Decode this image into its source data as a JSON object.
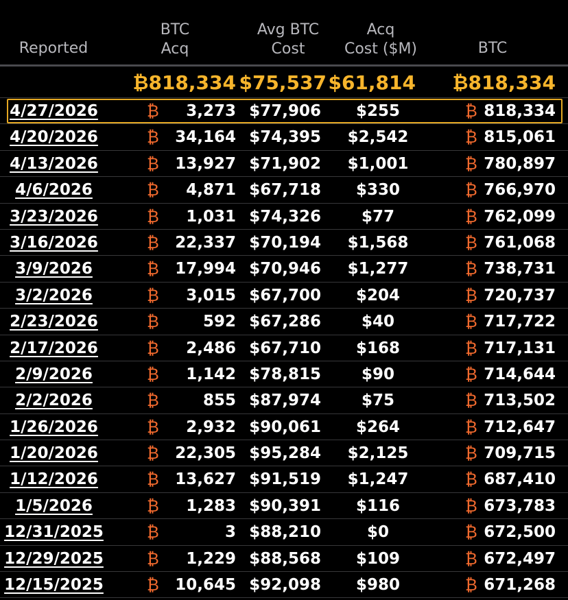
{
  "header": {
    "reported": "Reported",
    "btc_acq": [
      "BTC",
      "Acq"
    ],
    "avg_btc_cost": [
      "Avg BTC",
      "Cost"
    ],
    "acq_cost": [
      "Acq",
      "Cost ($M)"
    ],
    "btc": "BTC"
  },
  "totals": {
    "btc_acq": "₿818,334",
    "avg_btc_cost": "$75,537",
    "acq_cost": "$61,814",
    "btc": "₿818,334"
  },
  "coin_symbol": "₿",
  "colors": {
    "background": "#000000",
    "header_text": "#b8b8bd",
    "total_gold": "#f7b52c",
    "coin_orange": "#f26a2e",
    "highlight_border": "#e5a823"
  },
  "rows": [
    {
      "date": "4/27/2026",
      "acq": "3,273",
      "avg": "$77,906",
      "cost": "$255",
      "btc": "818,334",
      "highlighted": true
    },
    {
      "date": "4/20/2026",
      "acq": "34,164",
      "avg": "$74,395",
      "cost": "$2,542",
      "btc": "815,061"
    },
    {
      "date": "4/13/2026",
      "acq": "13,927",
      "avg": "$71,902",
      "cost": "$1,001",
      "btc": "780,897"
    },
    {
      "date": "4/6/2026",
      "acq": "4,871",
      "avg": "$67,718",
      "cost": "$330",
      "btc": "766,970"
    },
    {
      "date": "3/23/2026",
      "acq": "1,031",
      "avg": "$74,326",
      "cost": "$77",
      "btc": "762,099"
    },
    {
      "date": "3/16/2026",
      "acq": "22,337",
      "avg": "$70,194",
      "cost": "$1,568",
      "btc": "761,068"
    },
    {
      "date": "3/9/2026",
      "acq": "17,994",
      "avg": "$70,946",
      "cost": "$1,277",
      "btc": "738,731"
    },
    {
      "date": "3/2/2026",
      "acq": "3,015",
      "avg": "$67,700",
      "cost": "$204",
      "btc": "720,737"
    },
    {
      "date": "2/23/2026",
      "acq": "592",
      "avg": "$67,286",
      "cost": "$40",
      "btc": "717,722"
    },
    {
      "date": "2/17/2026",
      "acq": "2,486",
      "avg": "$67,710",
      "cost": "$168",
      "btc": "717,131"
    },
    {
      "date": "2/9/2026",
      "acq": "1,142",
      "avg": "$78,815",
      "cost": "$90",
      "btc": "714,644"
    },
    {
      "date": "2/2/2026",
      "acq": "855",
      "avg": "$87,974",
      "cost": "$75",
      "btc": "713,502"
    },
    {
      "date": "1/26/2026",
      "acq": "2,932",
      "avg": "$90,061",
      "cost": "$264",
      "btc": "712,647"
    },
    {
      "date": "1/20/2026",
      "acq": "22,305",
      "avg": "$95,284",
      "cost": "$2,125",
      "btc": "709,715"
    },
    {
      "date": "1/12/2026",
      "acq": "13,627",
      "avg": "$91,519",
      "cost": "$1,247",
      "btc": "687,410"
    },
    {
      "date": "1/5/2026",
      "acq": "1,283",
      "avg": "$90,391",
      "cost": "$116",
      "btc": "673,783"
    },
    {
      "date": "12/31/2025",
      "acq": "3",
      "avg": "$88,210",
      "cost": "$0",
      "btc": "672,500"
    },
    {
      "date": "12/29/2025",
      "acq": "1,229",
      "avg": "$88,568",
      "cost": "$109",
      "btc": "672,497"
    },
    {
      "date": "12/15/2025",
      "acq": "10,645",
      "avg": "$92,098",
      "cost": "$980",
      "btc": "671,268"
    }
  ]
}
